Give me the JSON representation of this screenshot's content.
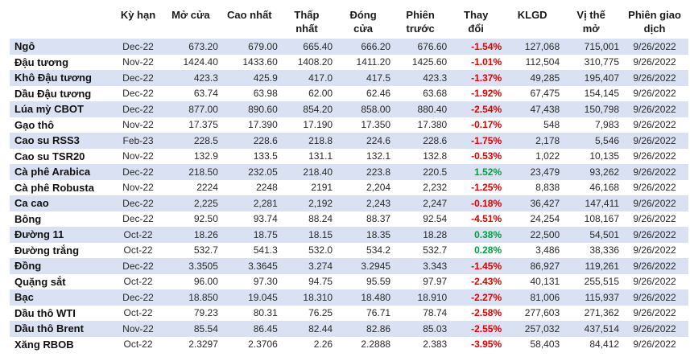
{
  "headers": [
    "",
    "Kỳ hạn",
    "Mở cửa",
    "Cao nhất",
    "Thấp\nnhất",
    "Đóng\ncửa",
    "Phiên\ntrước",
    "Thay\nđổi",
    "KLGD",
    "Vị thế\nmở",
    "Phiên giao\ndịch"
  ],
  "rows": [
    [
      "Ngô",
      "Dec-22",
      "673.20",
      "679.00",
      "665.40",
      "666.20",
      "676.60",
      "-1.54%",
      "127,068",
      "715,001",
      "9/26/2022"
    ],
    [
      "Đậu tương",
      "Nov-22",
      "1424.40",
      "1433.60",
      "1408.20",
      "1411.20",
      "1425.60",
      "-1.01%",
      "112,504",
      "310,775",
      "9/26/2022"
    ],
    [
      "Khô Đậu tương",
      "Dec-22",
      "423.3",
      "425.9",
      "417.0",
      "417.5",
      "423.3",
      "-1.37%",
      "49,285",
      "195,407",
      "9/26/2022"
    ],
    [
      "Dầu Đậu tương",
      "Dec-22",
      "63.74",
      "63.98",
      "62.00",
      "62.46",
      "63.68",
      "-1.92%",
      "67,475",
      "154,145",
      "9/26/2022"
    ],
    [
      "Lúa mỳ CBOT",
      "Dec-22",
      "877.00",
      "890.60",
      "854.20",
      "858.00",
      "880.40",
      "-2.54%",
      "47,438",
      "150,798",
      "9/26/2022"
    ],
    [
      "Gạo thô",
      "Nov-22",
      "17.375",
      "17.390",
      "17.190",
      "17.350",
      "17.380",
      "-0.17%",
      "548",
      "7,983",
      "9/26/2022"
    ],
    [
      "Cao su RSS3",
      "Feb-23",
      "228.5",
      "228.6",
      "218.8",
      "224.6",
      "228.6",
      "-1.75%",
      "2,178",
      "5,546",
      "9/26/2022"
    ],
    [
      "Cao su TSR20",
      "Nov-22",
      "132.9",
      "133.5",
      "131.1",
      "132.1",
      "132.8",
      "-0.53%",
      "1,022",
      "10,135",
      "9/26/2022"
    ],
    [
      "Cà phê Arabica",
      "Dec-22",
      "218.50",
      "232.05",
      "218.40",
      "223.8",
      "220.5",
      "1.52%",
      "23,479",
      "93,262",
      "9/26/2022"
    ],
    [
      "Cà phê Robusta",
      "Nov-22",
      "2224",
      "2248",
      "2191",
      "2,204",
      "2,232",
      "-1.25%",
      "8,838",
      "46,168",
      "9/26/2022"
    ],
    [
      "Ca cao",
      "Dec-22",
      "2,225",
      "2,281",
      "2,192",
      "2,243",
      "2,247",
      "-0.18%",
      "36,427",
      "147,411",
      "9/26/2022"
    ],
    [
      "Bông",
      "Dec-22",
      "92.50",
      "93.74",
      "88.24",
      "88.37",
      "92.54",
      "-4.51%",
      "24,254",
      "108,167",
      "9/26/2022"
    ],
    [
      "Đường 11",
      "Oct-22",
      "18.26",
      "18.75",
      "18.15",
      "18.35",
      "18.28",
      "0.38%",
      "22,500",
      "54,501",
      "9/26/2022"
    ],
    [
      "Đường trắng",
      "Oct-22",
      "532.7",
      "541.3",
      "532.0",
      "534.2",
      "532.7",
      "0.28%",
      "3,486",
      "38,336",
      "9/26/2022"
    ],
    [
      "Đồng",
      "Dec-22",
      "3.3505",
      "3.3645",
      "3.274",
      "3.2945",
      "3.343",
      "-1.45%",
      "86,927",
      "119,261",
      "9/26/2022"
    ],
    [
      "Quặng sắt",
      "Oct-22",
      "96.00",
      "97.30",
      "94.75",
      "95.59",
      "97.97",
      "-2.43%",
      "40,131",
      "255,515",
      "9/26/2022"
    ],
    [
      "Bạc",
      "Dec-22",
      "18.850",
      "19.045",
      "18.310",
      "18.480",
      "18.910",
      "-2.27%",
      "81,006",
      "115,937",
      "9/26/2022"
    ],
    [
      "Dầu thô WTI",
      "Oct-22",
      "79.23",
      "80.31",
      "76.25",
      "76.71",
      "78.74",
      "-2.58%",
      "277,603",
      "271,362",
      "9/26/2022"
    ],
    [
      "Dầu thô Brent",
      "Nov-22",
      "85.54",
      "86.45",
      "82.44",
      "82.86",
      "85.03",
      "-2.55%",
      "257,032",
      "437,514",
      "9/26/2022"
    ],
    [
      "Xăng RBOB",
      "Oct-22",
      "2.3297",
      "2.3706",
      "2.26",
      "2.2888",
      "2.383",
      "-3.95%",
      "58,403",
      "84,412",
      "9/26/2022"
    ]
  ],
  "colors": {
    "row_shade": "#d9e1f2",
    "negative": "#e00000",
    "positive": "#00a040"
  }
}
